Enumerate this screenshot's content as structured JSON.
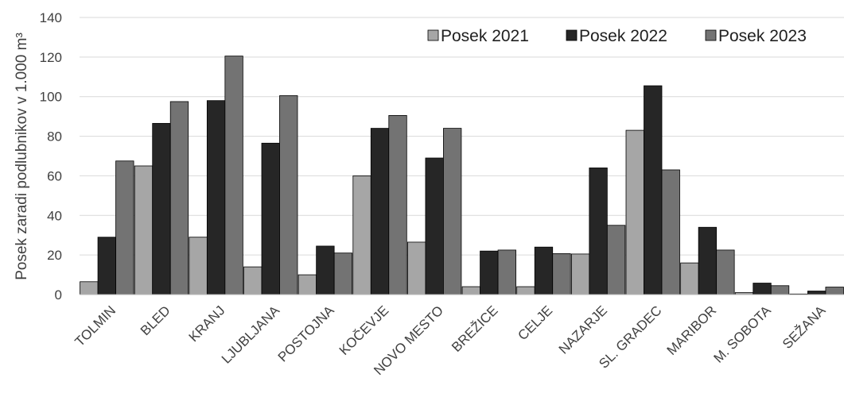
{
  "chart_data": {
    "type": "bar",
    "title": "",
    "xlabel": "",
    "ylabel": "Posek zaradi podlubnikov v 1.000 m³",
    "ylim": [
      0,
      140
    ],
    "yticks": [
      "0",
      "20",
      "40",
      "60",
      "80",
      "100",
      "120",
      "140"
    ],
    "grid": true,
    "legend_position": "top-right",
    "categories": [
      "TOLMIN",
      "BLED",
      "KRANJ",
      "LJUBLJANA",
      "POSTOJNA",
      "KOČEVJE",
      "NOVO MESTO",
      "BREŽICE",
      "CELJE",
      "NAZARJE",
      "SL. GRADEC",
      "MARIBOR",
      "M. SOBOTA",
      "SEŽANA"
    ],
    "series": [
      {
        "name": "Posek 2021",
        "color": "#a6a6a6",
        "values": [
          6.5,
          65,
          29,
          14,
          10,
          60,
          26.5,
          4,
          4,
          20.5,
          83,
          16,
          1,
          0.3
        ]
      },
      {
        "name": "Posek 2022",
        "color": "#262626",
        "values": [
          29,
          86.5,
          98,
          76.5,
          24.5,
          84,
          69,
          22,
          24,
          64,
          105.5,
          34,
          5.8,
          1.8
        ]
      },
      {
        "name": "Posek 2023",
        "color": "#737373",
        "values": [
          67.5,
          97.5,
          120.5,
          100.5,
          21,
          90.5,
          84,
          22.5,
          20.7,
          35,
          63,
          22.5,
          4.5,
          3.8
        ]
      }
    ]
  }
}
